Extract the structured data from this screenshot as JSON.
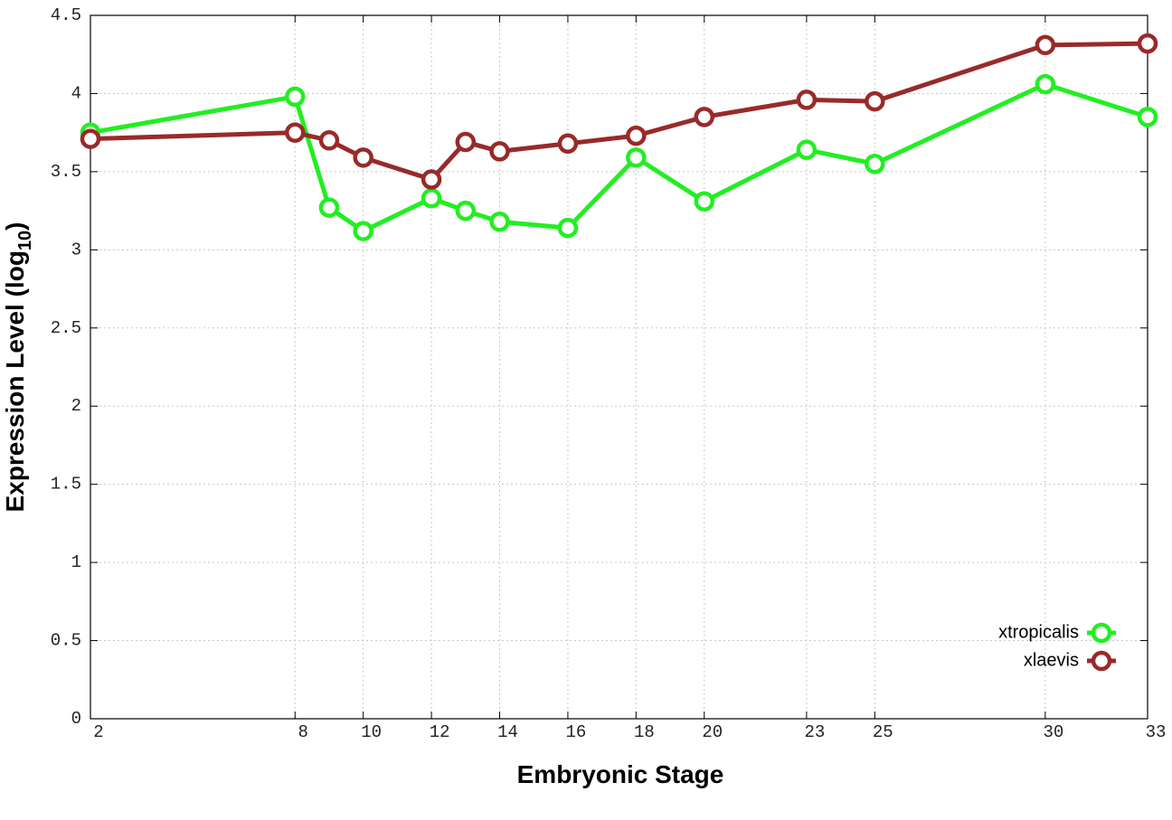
{
  "chart_data": {
    "type": "line",
    "xlabel": "Embryonic Stage",
    "ylabel": [
      "Expression Level (log",
      "10",
      ")"
    ],
    "x": [
      2,
      8,
      9,
      10,
      12,
      13,
      14,
      16,
      18,
      20,
      23,
      25,
      30,
      33
    ],
    "series": [
      {
        "name": "xtropicalis",
        "color": "#22ee22",
        "values": [
          3.75,
          3.98,
          3.27,
          3.12,
          3.33,
          3.25,
          3.18,
          3.14,
          3.59,
          3.31,
          3.64,
          3.55,
          4.06,
          3.85
        ]
      },
      {
        "name": "xlaevis",
        "color": "#992a2a",
        "values": [
          3.71,
          3.75,
          3.7,
          3.59,
          3.45,
          3.69,
          3.63,
          3.68,
          3.73,
          3.85,
          3.96,
          3.95,
          4.31,
          4.32
        ]
      }
    ],
    "xlim": [
      2,
      33
    ],
    "xticks": [
      2,
      8,
      10,
      12,
      14,
      16,
      18,
      20,
      23,
      25,
      30,
      33
    ],
    "ylim": [
      0,
      4.5
    ],
    "yticks": [
      0,
      0.5,
      1,
      1.5,
      2,
      2.5,
      3,
      3.5,
      4,
      4.5
    ],
    "grid": true,
    "legend": "bottom-right"
  }
}
